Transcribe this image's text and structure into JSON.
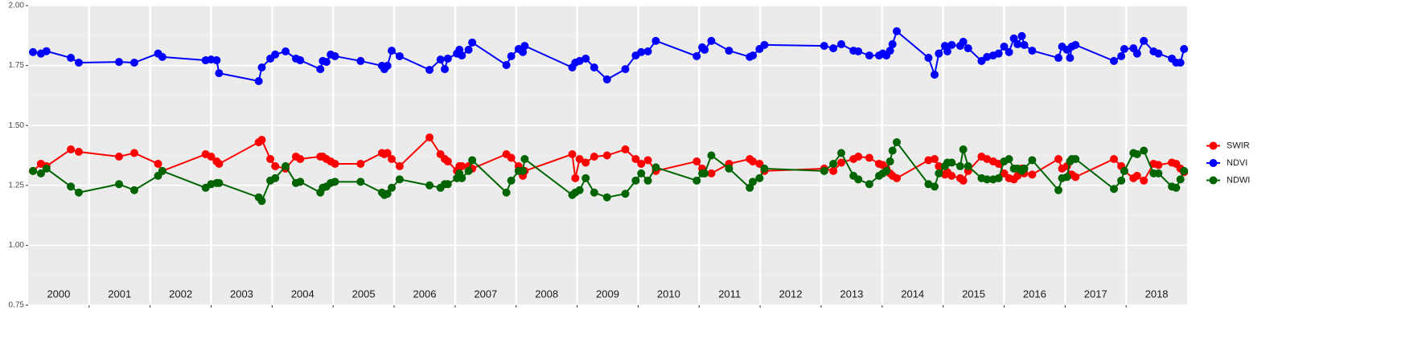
{
  "chart_data": {
    "type": "line",
    "x": [
      2000.08,
      2000.21,
      2000.3,
      2000.7,
      2000.83,
      2001.49,
      2001.74,
      2002.13,
      2002.2,
      2002.91,
      2003.0,
      2003.09,
      2003.13,
      2003.78,
      2003.83,
      2003.97,
      2004.05,
      2004.22,
      2004.39,
      2004.46,
      2004.79,
      2004.83,
      2004.89,
      2004.96,
      2005.03,
      2005.45,
      2005.8,
      2005.84,
      2005.89,
      2005.96,
      2006.09,
      2006.58,
      2006.76,
      2006.83,
      2006.88,
      2007.03,
      2007.07,
      2007.11,
      2007.22,
      2007.28,
      2007.84,
      2007.92,
      2008.04,
      2008.11,
      2008.14,
      2008.92,
      2008.97,
      2009.04,
      2009.14,
      2009.28,
      2009.49,
      2009.79,
      2009.96,
      2010.05,
      2010.16,
      2010.29,
      2010.96,
      2011.05,
      2011.09,
      2011.2,
      2011.49,
      2011.83,
      2011.88,
      2011.99,
      2012.07,
      2013.05,
      2013.2,
      2013.33,
      2013.53,
      2013.61,
      2013.79,
      2013.95,
      2014.01,
      2014.07,
      2014.13,
      2014.17,
      2014.24,
      2014.76,
      2014.86,
      2014.93,
      2015.03,
      2015.07,
      2015.14,
      2015.28,
      2015.33,
      2015.41,
      2015.63,
      2015.72,
      2015.82,
      2015.91,
      2016.0,
      2016.08,
      2016.16,
      2016.22,
      2016.29,
      2016.33,
      2016.46,
      2016.89,
      2016.95,
      2017.03,
      2017.08,
      2017.11,
      2017.17,
      2017.8,
      2017.92,
      2017.97,
      2018.12,
      2018.18,
      2018.29,
      2018.45,
      2018.53,
      2018.75,
      2018.82,
      2018.89,
      2018.95
    ],
    "series": [
      {
        "name": "SWIR",
        "color": "#ff0000",
        "values": [
          1.31,
          1.34,
          1.33,
          1.4,
          1.39,
          1.37,
          1.385,
          1.34,
          1.31,
          1.38,
          1.37,
          1.35,
          1.34,
          1.43,
          1.44,
          1.36,
          1.33,
          1.32,
          1.37,
          1.36,
          1.37,
          1.37,
          1.36,
          1.35,
          1.34,
          1.34,
          1.385,
          1.38,
          1.385,
          1.36,
          1.33,
          1.45,
          1.38,
          1.36,
          1.35,
          1.31,
          1.33,
          1.33,
          1.33,
          1.32,
          1.38,
          1.365,
          1.33,
          1.29,
          1.31,
          1.38,
          1.28,
          1.36,
          1.345,
          1.37,
          1.375,
          1.4,
          1.36,
          1.34,
          1.355,
          1.31,
          1.35,
          1.32,
          1.3,
          1.3,
          1.34,
          1.36,
          1.35,
          1.34,
          1.31,
          1.32,
          1.31,
          1.345,
          1.36,
          1.37,
          1.365,
          1.34,
          1.335,
          1.32,
          1.3,
          1.29,
          1.28,
          1.355,
          1.36,
          1.33,
          1.295,
          1.305,
          1.29,
          1.28,
          1.27,
          1.31,
          1.37,
          1.36,
          1.35,
          1.34,
          1.3,
          1.28,
          1.275,
          1.29,
          1.32,
          1.3,
          1.295,
          1.36,
          1.32,
          1.33,
          1.295,
          1.295,
          1.285,
          1.36,
          1.33,
          1.31,
          1.28,
          1.29,
          1.27,
          1.34,
          1.335,
          1.345,
          1.34,
          1.32,
          1.305
        ]
      },
      {
        "name": "NDVI",
        "color": "#0000ff",
        "values": [
          1.806,
          1.8,
          1.81,
          1.782,
          1.762,
          1.765,
          1.762,
          1.8,
          1.786,
          1.772,
          1.775,
          1.772,
          1.718,
          1.685,
          1.742,
          1.779,
          1.796,
          1.809,
          1.779,
          1.772,
          1.735,
          1.769,
          1.765,
          1.796,
          1.789,
          1.769,
          1.749,
          1.735,
          1.749,
          1.812,
          1.789,
          1.732,
          1.775,
          1.735,
          1.779,
          1.8,
          1.816,
          1.792,
          1.816,
          1.846,
          1.752,
          1.789,
          1.819,
          1.806,
          1.832,
          1.742,
          1.762,
          1.769,
          1.779,
          1.742,
          1.692,
          1.735,
          1.792,
          1.806,
          1.809,
          1.853,
          1.789,
          1.826,
          1.816,
          1.853,
          1.812,
          1.786,
          1.792,
          1.819,
          1.836,
          1.832,
          1.822,
          1.839,
          1.812,
          1.809,
          1.792,
          1.792,
          1.8,
          1.792,
          1.812,
          1.839,
          1.893,
          1.782,
          1.712,
          1.8,
          1.832,
          1.809,
          1.836,
          1.832,
          1.849,
          1.822,
          1.769,
          1.786,
          1.792,
          1.8,
          1.829,
          1.806,
          1.863,
          1.839,
          1.873,
          1.836,
          1.812,
          1.782,
          1.829,
          1.816,
          1.782,
          1.829,
          1.836,
          1.769,
          1.789,
          1.819,
          1.822,
          1.8,
          1.853,
          1.809,
          1.8,
          1.779,
          1.762,
          1.762,
          1.819
        ]
      },
      {
        "name": "NDWI",
        "color": "#006400",
        "values": [
          1.31,
          1.3,
          1.32,
          1.245,
          1.22,
          1.255,
          1.23,
          1.29,
          1.31,
          1.24,
          1.255,
          1.26,
          1.26,
          1.2,
          1.185,
          1.27,
          1.28,
          1.33,
          1.26,
          1.265,
          1.22,
          1.24,
          1.245,
          1.26,
          1.265,
          1.265,
          1.22,
          1.21,
          1.215,
          1.24,
          1.275,
          1.25,
          1.24,
          1.255,
          1.255,
          1.28,
          1.3,
          1.28,
          1.31,
          1.355,
          1.22,
          1.27,
          1.31,
          1.31,
          1.36,
          1.21,
          1.22,
          1.23,
          1.28,
          1.22,
          1.2,
          1.215,
          1.27,
          1.3,
          1.27,
          1.325,
          1.27,
          1.3,
          1.3,
          1.375,
          1.32,
          1.24,
          1.265,
          1.28,
          1.32,
          1.31,
          1.34,
          1.385,
          1.29,
          1.275,
          1.255,
          1.29,
          1.3,
          1.31,
          1.35,
          1.395,
          1.43,
          1.255,
          1.245,
          1.3,
          1.33,
          1.345,
          1.345,
          1.33,
          1.4,
          1.33,
          1.28,
          1.275,
          1.275,
          1.28,
          1.35,
          1.36,
          1.32,
          1.32,
          1.31,
          1.32,
          1.355,
          1.23,
          1.28,
          1.285,
          1.35,
          1.36,
          1.36,
          1.235,
          1.27,
          1.31,
          1.385,
          1.38,
          1.395,
          1.3,
          1.3,
          1.245,
          1.24,
          1.275,
          1.31
        ]
      }
    ],
    "xlim": [
      2000,
      2019
    ],
    "xticks": [
      {
        "value": 2000.5,
        "label": "2000"
      },
      {
        "value": 2001.5,
        "label": "2001"
      },
      {
        "value": 2002.5,
        "label": "2002"
      },
      {
        "value": 2003.5,
        "label": "2003"
      },
      {
        "value": 2004.5,
        "label": "2004"
      },
      {
        "value": 2005.5,
        "label": "2005"
      },
      {
        "value": 2006.5,
        "label": "2006"
      },
      {
        "value": 2007.5,
        "label": "2007"
      },
      {
        "value": 2008.5,
        "label": "2008"
      },
      {
        "value": 2009.5,
        "label": "2009"
      },
      {
        "value": 2010.5,
        "label": "2010"
      },
      {
        "value": 2011.5,
        "label": "2011"
      },
      {
        "value": 2012.5,
        "label": "2012"
      },
      {
        "value": 2013.5,
        "label": "2013"
      },
      {
        "value": 2014.5,
        "label": "2014"
      },
      {
        "value": 2015.5,
        "label": "2015"
      },
      {
        "value": 2016.5,
        "label": "2016"
      },
      {
        "value": 2017.5,
        "label": "2017"
      },
      {
        "value": 2018.5,
        "label": "2018"
      }
    ],
    "xgrid": [
      2001,
      2002,
      2003,
      2004,
      2005,
      2006,
      2007,
      2008,
      2009,
      2010,
      2011,
      2012,
      2013,
      2014,
      2015,
      2016,
      2017,
      2018
    ],
    "ylim": [
      0.75,
      2.0
    ],
    "yticks": [
      {
        "value": 0.75,
        "label": "0.75"
      },
      {
        "value": 1.0,
        "label": "1.00"
      },
      {
        "value": 1.25,
        "label": "1.25"
      },
      {
        "value": 1.5,
        "label": "1.50"
      },
      {
        "value": 1.75,
        "label": "1.75"
      },
      {
        "value": 2.0,
        "label": "2.00"
      }
    ],
    "grid": true,
    "legend": "right"
  }
}
